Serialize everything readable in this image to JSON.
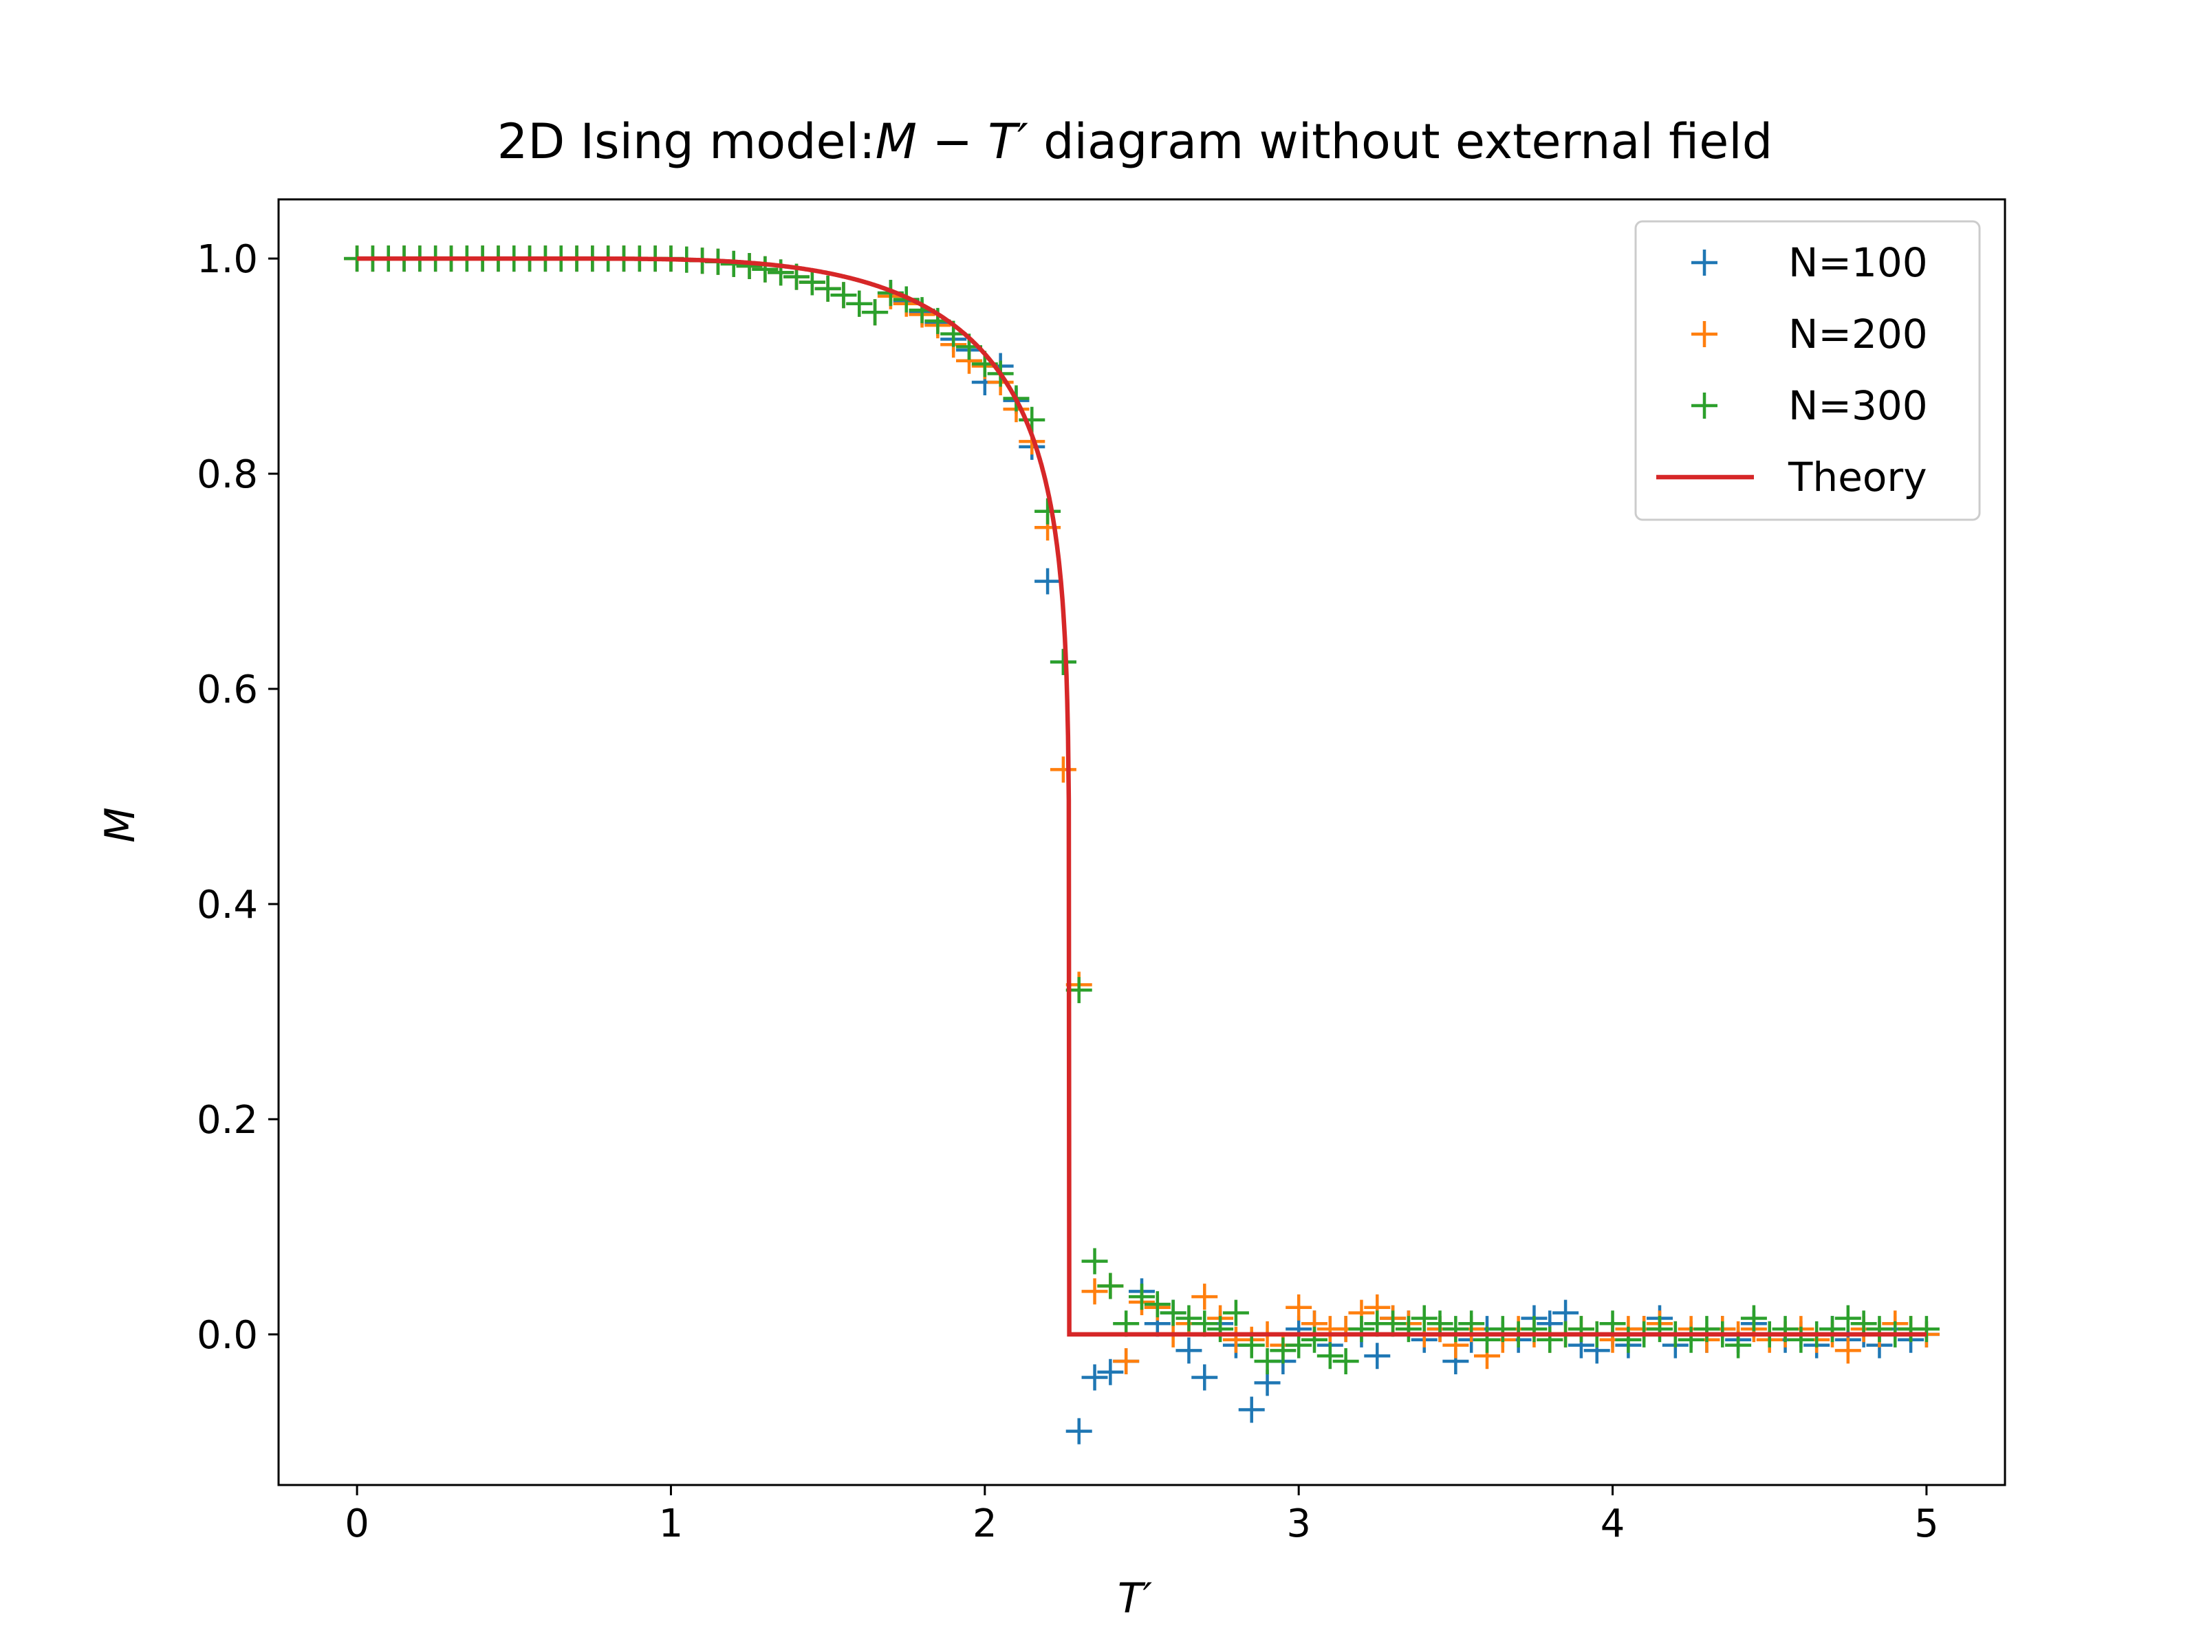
{
  "chart_data": {
    "type": "scatter",
    "title": "2D Ising model:M − T′ diagram without external field",
    "xlabel": "T′",
    "ylabel": "M",
    "xlim": [
      -0.25,
      5.25
    ],
    "ylim": [
      -0.14,
      1.055
    ],
    "x_ticks": [
      0,
      1,
      2,
      3,
      4,
      5
    ],
    "x_tick_labels": [
      "0",
      "1",
      "2",
      "3",
      "4",
      "5"
    ],
    "y_ticks": [
      0.0,
      0.2,
      0.4,
      0.6,
      0.8,
      1.0
    ],
    "y_tick_labels": [
      "0.0",
      "0.2",
      "0.4",
      "0.6",
      "0.8",
      "1.0"
    ],
    "grid": false,
    "legend_position": "top-right",
    "series": [
      {
        "name": "N=100",
        "color": "#1f77b4",
        "marker": "plus",
        "points": [
          [
            0.0,
            1.0
          ],
          [
            0.05,
            1.0
          ],
          [
            0.1,
            1.0
          ],
          [
            0.15,
            1.0
          ],
          [
            0.2,
            1.0
          ],
          [
            0.25,
            1.0
          ],
          [
            0.3,
            1.0
          ],
          [
            0.35,
            1.0
          ],
          [
            0.4,
            1.0
          ],
          [
            0.45,
            1.0
          ],
          [
            0.5,
            1.0
          ],
          [
            0.55,
            1.0
          ],
          [
            0.6,
            1.0
          ],
          [
            0.65,
            1.0
          ],
          [
            0.7,
            1.0
          ],
          [
            0.75,
            1.0
          ],
          [
            0.8,
            1.0
          ],
          [
            0.85,
            1.0
          ],
          [
            0.9,
            1.0
          ],
          [
            0.95,
            1.0
          ],
          [
            1.0,
            1.0
          ],
          [
            1.05,
            0.999
          ],
          [
            1.1,
            0.998
          ],
          [
            1.15,
            0.997
          ],
          [
            1.2,
            0.995
          ],
          [
            1.25,
            0.993
          ],
          [
            1.3,
            0.99
          ],
          [
            1.35,
            0.987
          ],
          [
            1.4,
            0.983
          ],
          [
            1.45,
            0.978
          ],
          [
            1.5,
            0.972
          ],
          [
            1.55,
            0.966
          ],
          [
            1.6,
            0.958
          ],
          [
            1.65,
            0.95
          ],
          [
            1.7,
            0.968
          ],
          [
            1.75,
            0.96
          ],
          [
            1.8,
            0.95
          ],
          [
            1.85,
            0.94
          ],
          [
            1.9,
            0.925
          ],
          [
            1.95,
            0.915
          ],
          [
            2.0,
            0.885
          ],
          [
            2.05,
            0.9
          ],
          [
            2.1,
            0.868
          ],
          [
            2.15,
            0.825
          ],
          [
            2.2,
            0.7
          ],
          [
            2.25,
            0.625
          ],
          [
            2.3,
            -0.09
          ],
          [
            2.35,
            -0.04
          ],
          [
            2.4,
            -0.035
          ],
          [
            2.45,
            -0.025
          ],
          [
            2.5,
            0.04
          ],
          [
            2.55,
            0.01
          ],
          [
            2.6,
            0.02
          ],
          [
            2.65,
            -0.015
          ],
          [
            2.7,
            -0.04
          ],
          [
            2.75,
            0.01
          ],
          [
            2.8,
            -0.01
          ],
          [
            2.85,
            -0.07
          ],
          [
            2.9,
            -0.045
          ],
          [
            2.95,
            -0.025
          ],
          [
            3.0,
            0.005
          ],
          [
            3.05,
            0.01
          ],
          [
            3.1,
            -0.01
          ],
          [
            3.15,
            0.005
          ],
          [
            3.2,
            0.0
          ],
          [
            3.25,
            -0.02
          ],
          [
            3.3,
            0.015
          ],
          [
            3.35,
            0.01
          ],
          [
            3.4,
            -0.005
          ],
          [
            3.45,
            0.005
          ],
          [
            3.5,
            -0.025
          ],
          [
            3.55,
            -0.005
          ],
          [
            3.6,
            0.005
          ],
          [
            3.65,
            0.0
          ],
          [
            3.7,
            -0.005
          ],
          [
            3.75,
            0.015
          ],
          [
            3.8,
            0.01
          ],
          [
            3.85,
            0.02
          ],
          [
            3.9,
            -0.01
          ],
          [
            3.95,
            -0.015
          ],
          [
            4.0,
            0.0
          ],
          [
            4.05,
            -0.01
          ],
          [
            4.1,
            0.005
          ],
          [
            4.15,
            0.015
          ],
          [
            4.2,
            -0.01
          ],
          [
            4.25,
            0.0
          ],
          [
            4.3,
            -0.005
          ],
          [
            4.35,
            0.005
          ],
          [
            4.4,
            -0.005
          ],
          [
            4.45,
            0.01
          ],
          [
            4.5,
            0.0
          ],
          [
            4.55,
            -0.005
          ],
          [
            4.6,
            0.0
          ],
          [
            4.65,
            -0.01
          ],
          [
            4.7,
            0.005
          ],
          [
            4.75,
            -0.005
          ],
          [
            4.8,
            0.0
          ],
          [
            4.85,
            -0.01
          ],
          [
            4.9,
            0.005
          ],
          [
            4.95,
            -0.005
          ],
          [
            5.0,
            0.0
          ]
        ]
      },
      {
        "name": "N=200",
        "color": "#ff7f0e",
        "marker": "plus",
        "points": [
          [
            0.0,
            1.0
          ],
          [
            0.05,
            1.0
          ],
          [
            0.1,
            1.0
          ],
          [
            0.15,
            1.0
          ],
          [
            0.2,
            1.0
          ],
          [
            0.25,
            1.0
          ],
          [
            0.3,
            1.0
          ],
          [
            0.35,
            1.0
          ],
          [
            0.4,
            1.0
          ],
          [
            0.45,
            1.0
          ],
          [
            0.5,
            1.0
          ],
          [
            0.55,
            1.0
          ],
          [
            0.6,
            1.0
          ],
          [
            0.65,
            1.0
          ],
          [
            0.7,
            1.0
          ],
          [
            0.75,
            1.0
          ],
          [
            0.8,
            1.0
          ],
          [
            0.85,
            1.0
          ],
          [
            0.9,
            1.0
          ],
          [
            0.95,
            1.0
          ],
          [
            1.0,
            1.0
          ],
          [
            1.05,
            0.999
          ],
          [
            1.1,
            0.998
          ],
          [
            1.15,
            0.997
          ],
          [
            1.2,
            0.995
          ],
          [
            1.25,
            0.993
          ],
          [
            1.3,
            0.99
          ],
          [
            1.35,
            0.987
          ],
          [
            1.4,
            0.983
          ],
          [
            1.45,
            0.978
          ],
          [
            1.5,
            0.972
          ],
          [
            1.55,
            0.966
          ],
          [
            1.6,
            0.958
          ],
          [
            1.65,
            0.95
          ],
          [
            1.7,
            0.965
          ],
          [
            1.75,
            0.958
          ],
          [
            1.8,
            0.948
          ],
          [
            1.85,
            0.938
          ],
          [
            1.9,
            0.92
          ],
          [
            1.95,
            0.905
          ],
          [
            2.0,
            0.9
          ],
          [
            2.05,
            0.885
          ],
          [
            2.1,
            0.86
          ],
          [
            2.15,
            0.83
          ],
          [
            2.2,
            0.75
          ],
          [
            2.25,
            0.525
          ],
          [
            2.3,
            0.325
          ],
          [
            2.35,
            0.04
          ],
          [
            2.4,
            0.045
          ],
          [
            2.45,
            -0.025
          ],
          [
            2.5,
            0.03
          ],
          [
            2.55,
            0.025
          ],
          [
            2.6,
            0.0
          ],
          [
            2.65,
            0.01
          ],
          [
            2.7,
            0.035
          ],
          [
            2.75,
            0.015
          ],
          [
            2.8,
            -0.005
          ],
          [
            2.85,
            -0.005
          ],
          [
            2.9,
            0.0
          ],
          [
            2.95,
            -0.01
          ],
          [
            3.0,
            0.025
          ],
          [
            3.05,
            0.01
          ],
          [
            3.1,
            0.005
          ],
          [
            3.15,
            0.005
          ],
          [
            3.2,
            0.02
          ],
          [
            3.25,
            0.025
          ],
          [
            3.3,
            0.015
          ],
          [
            3.35,
            0.01
          ],
          [
            3.4,
            0.0
          ],
          [
            3.45,
            0.005
          ],
          [
            3.5,
            -0.01
          ],
          [
            3.55,
            0.005
          ],
          [
            3.6,
            -0.02
          ],
          [
            3.65,
            -0.005
          ],
          [
            3.7,
            0.005
          ],
          [
            3.75,
            0.0
          ],
          [
            3.8,
            -0.005
          ],
          [
            3.85,
            0.0
          ],
          [
            3.9,
            0.005
          ],
          [
            3.95,
            0.0
          ],
          [
            4.0,
            -0.005
          ],
          [
            4.05,
            0.005
          ],
          [
            4.1,
            0.005
          ],
          [
            4.15,
            0.01
          ],
          [
            4.2,
            0.0
          ],
          [
            4.25,
            0.005
          ],
          [
            4.3,
            -0.005
          ],
          [
            4.35,
            0.005
          ],
          [
            4.4,
            0.0
          ],
          [
            4.45,
            0.005
          ],
          [
            4.5,
            -0.005
          ],
          [
            4.55,
            0.0
          ],
          [
            4.6,
            0.005
          ],
          [
            4.65,
            -0.005
          ],
          [
            4.7,
            0.0
          ],
          [
            4.75,
            -0.015
          ],
          [
            4.8,
            0.005
          ],
          [
            4.85,
            0.0
          ],
          [
            4.9,
            0.01
          ],
          [
            4.95,
            0.005
          ],
          [
            5.0,
            0.0
          ]
        ]
      },
      {
        "name": "N=300",
        "color": "#2ca02c",
        "marker": "plus",
        "points": [
          [
            0.0,
            1.0
          ],
          [
            0.05,
            1.0
          ],
          [
            0.1,
            1.0
          ],
          [
            0.15,
            1.0
          ],
          [
            0.2,
            1.0
          ],
          [
            0.25,
            1.0
          ],
          [
            0.3,
            1.0
          ],
          [
            0.35,
            1.0
          ],
          [
            0.4,
            1.0
          ],
          [
            0.45,
            1.0
          ],
          [
            0.5,
            1.0
          ],
          [
            0.55,
            1.0
          ],
          [
            0.6,
            1.0
          ],
          [
            0.65,
            1.0
          ],
          [
            0.7,
            1.0
          ],
          [
            0.75,
            1.0
          ],
          [
            0.8,
            1.0
          ],
          [
            0.85,
            1.0
          ],
          [
            0.9,
            1.0
          ],
          [
            0.95,
            1.0
          ],
          [
            1.0,
            1.0
          ],
          [
            1.05,
            0.999
          ],
          [
            1.1,
            0.998
          ],
          [
            1.15,
            0.997
          ],
          [
            1.2,
            0.995
          ],
          [
            1.25,
            0.993
          ],
          [
            1.3,
            0.99
          ],
          [
            1.35,
            0.987
          ],
          [
            1.4,
            0.983
          ],
          [
            1.45,
            0.978
          ],
          [
            1.5,
            0.972
          ],
          [
            1.55,
            0.966
          ],
          [
            1.6,
            0.958
          ],
          [
            1.65,
            0.95
          ],
          [
            1.7,
            0.968
          ],
          [
            1.75,
            0.962
          ],
          [
            1.8,
            0.952
          ],
          [
            1.85,
            0.942
          ],
          [
            1.9,
            0.93
          ],
          [
            1.95,
            0.918
          ],
          [
            2.0,
            0.902
          ],
          [
            2.05,
            0.893
          ],
          [
            2.1,
            0.87
          ],
          [
            2.15,
            0.85
          ],
          [
            2.2,
            0.765
          ],
          [
            2.25,
            0.625
          ],
          [
            2.3,
            0.32
          ],
          [
            2.35,
            0.068
          ],
          [
            2.4,
            0.045
          ],
          [
            2.45,
            0.01
          ],
          [
            2.5,
            0.035
          ],
          [
            2.55,
            0.028
          ],
          [
            2.6,
            0.02
          ],
          [
            2.65,
            0.015
          ],
          [
            2.7,
            0.01
          ],
          [
            2.75,
            0.005
          ],
          [
            2.8,
            0.02
          ],
          [
            2.85,
            -0.01
          ],
          [
            2.9,
            -0.025
          ],
          [
            2.95,
            -0.015
          ],
          [
            3.0,
            -0.01
          ],
          [
            3.05,
            -0.005
          ],
          [
            3.1,
            -0.02
          ],
          [
            3.15,
            -0.025
          ],
          [
            3.2,
            0.005
          ],
          [
            3.25,
            0.01
          ],
          [
            3.3,
            0.01
          ],
          [
            3.35,
            0.005
          ],
          [
            3.4,
            0.015
          ],
          [
            3.45,
            0.01
          ],
          [
            3.5,
            0.005
          ],
          [
            3.55,
            0.01
          ],
          [
            3.6,
            -0.005
          ],
          [
            3.65,
            0.005
          ],
          [
            3.7,
            0.0
          ],
          [
            3.75,
            0.005
          ],
          [
            3.8,
            -0.005
          ],
          [
            3.85,
            0.0
          ],
          [
            3.9,
            0.005
          ],
          [
            3.95,
            0.0
          ],
          [
            4.0,
            0.01
          ],
          [
            4.05,
            -0.005
          ],
          [
            4.1,
            0.0
          ],
          [
            4.15,
            0.005
          ],
          [
            4.2,
            0.0
          ],
          [
            4.25,
            -0.005
          ],
          [
            4.3,
            0.005
          ],
          [
            4.35,
            0.0
          ],
          [
            4.4,
            -0.01
          ],
          [
            4.45,
            0.015
          ],
          [
            4.5,
            0.0
          ],
          [
            4.55,
            0.005
          ],
          [
            4.6,
            -0.005
          ],
          [
            4.65,
            0.0
          ],
          [
            4.7,
            0.005
          ],
          [
            4.75,
            0.015
          ],
          [
            4.8,
            0.01
          ],
          [
            4.85,
            0.005
          ],
          [
            4.9,
            0.0
          ],
          [
            4.95,
            0.005
          ],
          [
            5.0,
            0.005
          ]
        ]
      },
      {
        "name": "Theory",
        "color": "#d62728",
        "marker": "line",
        "critical_temperature": 2.269
      }
    ]
  }
}
